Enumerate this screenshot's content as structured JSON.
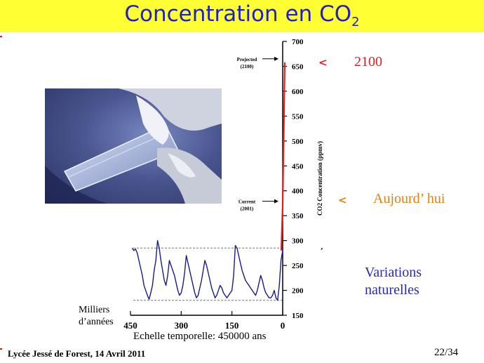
{
  "slide": {
    "title_main": "Concentration en CO",
    "title_sub": "2",
    "footer": "Lycée Jessé de Forest, 14 Avril 2011",
    "page_number": "22/34",
    "time_scale_caption": "Echelle temporelle: 450000 ans",
    "x_axis_unit": "Milliers d’années",
    "x_axis_unit_lines": [
      "Milliers",
      "d’années"
    ],
    "annotation_2100": "2100",
    "annotation_today": "Aujourd’ hui",
    "annotation_natural_lines": [
      "Variations",
      "naturelles"
    ],
    "colors": {
      "title_bar": "#ffff33",
      "title_text": "#2020c8",
      "natural_series": "#1a1a8c",
      "modern_rise": "#e02020",
      "annotation_2100": "#e02020",
      "annotation_today": "#e08010",
      "annotation_natural": "#2a2ab0"
    }
  },
  "chart_data": {
    "type": "line",
    "ylabel": "CO2 Concentration (ppmv)",
    "ylim": [
      150,
      700
    ],
    "yticks": [
      150,
      200,
      250,
      300,
      350,
      400,
      450,
      500,
      550,
      600,
      650,
      700
    ],
    "xlim": [
      450,
      0
    ],
    "xticks": [
      450,
      300,
      150,
      0
    ],
    "point_labels": [
      {
        "name": "projected",
        "text_lines": [
          "Projected",
          "(2100)"
        ],
        "y": 658
      },
      {
        "name": "current",
        "text_lines": [
          "Current",
          "(2001)"
        ],
        "y": 372
      }
    ],
    "reference_lines": [
      {
        "name": "natural-max",
        "y": 285
      },
      {
        "name": "natural-min",
        "y": 180
      }
    ],
    "series": [
      {
        "key": "natural",
        "x": [
          445,
          440,
          435,
          430,
          425,
          420,
          415,
          410,
          405,
          400,
          395,
          390,
          385,
          380,
          375,
          370,
          365,
          360,
          355,
          350,
          345,
          340,
          335,
          330,
          325,
          320,
          315,
          310,
          305,
          300,
          295,
          290,
          285,
          280,
          275,
          270,
          265,
          260,
          255,
          250,
          245,
          240,
          235,
          230,
          225,
          220,
          215,
          210,
          205,
          200,
          195,
          190,
          185,
          180,
          175,
          170,
          165,
          160,
          155,
          150,
          145,
          140,
          135,
          130,
          125,
          120,
          115,
          110,
          105,
          100,
          95,
          90,
          85,
          80,
          75,
          70,
          65,
          60,
          55,
          50,
          45,
          40,
          35,
          30,
          25,
          20,
          15,
          10,
          5,
          0
        ],
        "y": [
          285,
          280,
          283,
          275,
          260,
          245,
          230,
          210,
          200,
          190,
          182,
          195,
          210,
          240,
          260,
          300,
          285,
          260,
          240,
          220,
          210,
          230,
          260,
          250,
          240,
          230,
          215,
          200,
          190,
          195,
          210,
          235,
          270,
          255,
          240,
          225,
          210,
          195,
          185,
          190,
          205,
          220,
          240,
          260,
          250,
          235,
          220,
          205,
          195,
          185,
          190,
          200,
          210,
          205,
          195,
          190,
          185,
          190,
          195,
          200,
          230,
          290,
          285,
          270,
          255,
          240,
          230,
          220,
          215,
          210,
          205,
          200,
          195,
          190,
          200,
          215,
          230,
          220,
          205,
          195,
          190,
          185,
          185,
          190,
          200,
          185,
          180,
          210,
          260,
          280
        ]
      },
      {
        "key": "modern",
        "x": [
          0,
          0,
          0
        ],
        "y": [
          280,
          372,
          658
        ]
      }
    ]
  }
}
